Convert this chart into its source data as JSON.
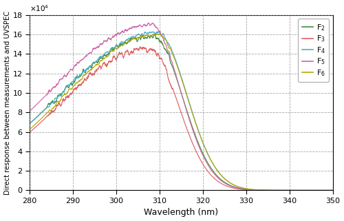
{
  "xlabel": "Wavelength (nm)",
  "ylabel": "Direct response between measurements and UVSPEC",
  "xlim": [
    280,
    350
  ],
  "ylim": [
    0,
    180000
  ],
  "xticks": [
    280,
    290,
    300,
    310,
    320,
    330,
    340,
    350
  ],
  "yticks": [
    0,
    20000,
    40000,
    60000,
    80000,
    100000,
    120000,
    140000,
    160000,
    180000
  ],
  "line_params": {
    "F2": {
      "color": "#3d8c40",
      "peak": 158000,
      "peak_wl": 308.5,
      "sigma_l": 22.0,
      "sigma_r": 6.8,
      "noise_amp": 3500,
      "noise_start": 284,
      "noise_end": 313
    },
    "F3": {
      "color": "#e06060",
      "peak": 146000,
      "peak_wl": 307.5,
      "sigma_l": 20.5,
      "sigma_r": 6.8,
      "noise_amp": 5000,
      "noise_start": 284,
      "noise_end": 313
    },
    "F4": {
      "color": "#4ab0cc",
      "peak": 162000,
      "peak_wl": 309.5,
      "sigma_l": 22.5,
      "sigma_r": 6.8,
      "noise_amp": 2500,
      "noise_start": 284,
      "noise_end": 313
    },
    "F5": {
      "color": "#cc66aa",
      "peak": 170000,
      "peak_wl": 308.0,
      "sigma_l": 23.0,
      "sigma_r": 6.8,
      "noise_amp": 3000,
      "noise_start": 284,
      "noise_end": 313
    },
    "F6": {
      "color": "#b8a800",
      "peak": 160000,
      "peak_wl": 309.5,
      "sigma_l": 21.5,
      "sigma_r": 6.8,
      "noise_amp": 2000,
      "noise_start": 284,
      "noise_end": 313
    }
  },
  "legend_order": [
    "F2",
    "F3",
    "F4",
    "F5",
    "F6"
  ],
  "background_color": "#ffffff"
}
